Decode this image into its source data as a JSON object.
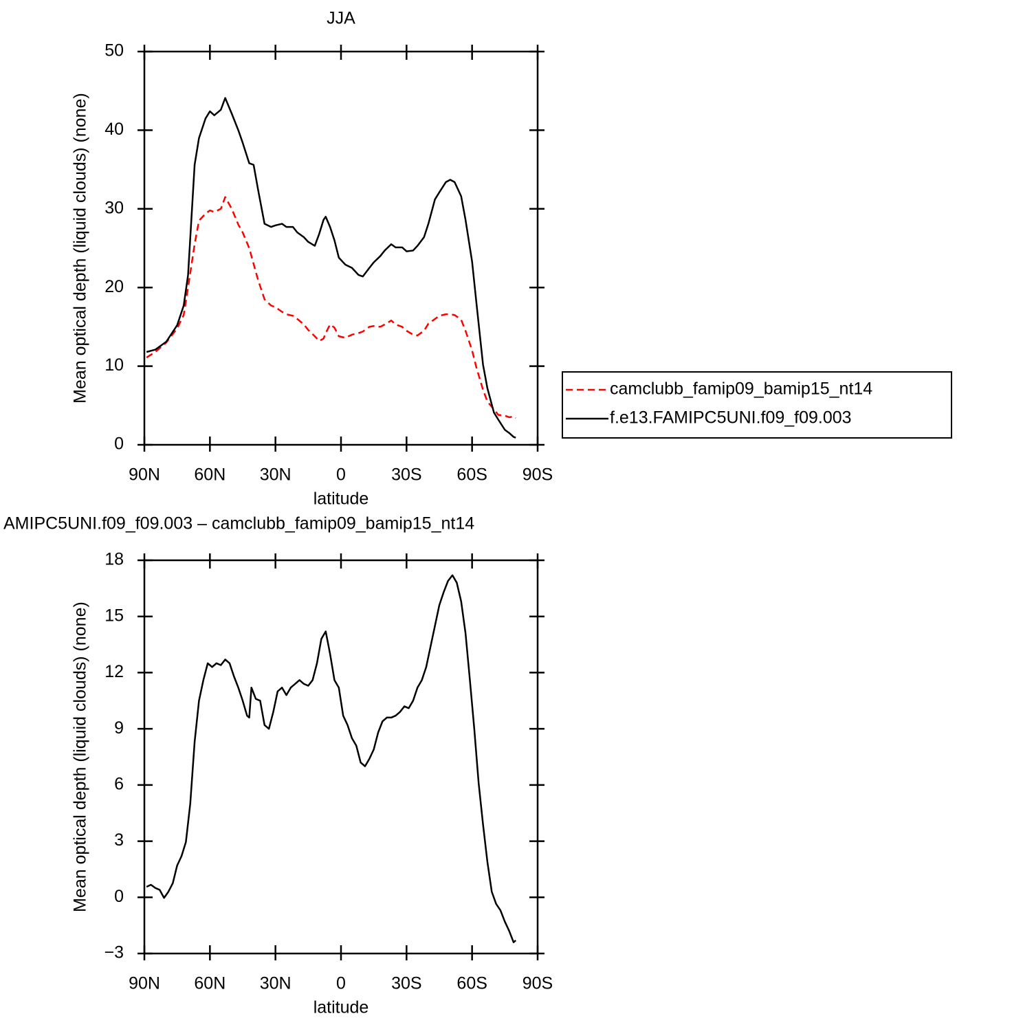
{
  "chart_data": [
    {
      "type": "line",
      "title": "JJA",
      "xlabel": "latitude",
      "ylabel": "Mean optical depth (liquid clouds) (none)",
      "x": [
        89,
        85,
        80,
        75,
        72,
        70,
        67,
        65,
        62,
        60,
        58,
        55,
        53,
        50,
        47,
        45,
        42,
        40,
        38,
        35,
        32,
        30,
        27,
        25,
        22,
        20,
        17,
        15,
        12,
        10,
        8,
        7,
        5,
        3,
        1,
        -2,
        -5,
        -8,
        -10,
        -13,
        -15,
        -18,
        -20,
        -23,
        -25,
        -28,
        -30,
        -33,
        -35,
        -38,
        -40,
        -43,
        -45,
        -48,
        -50,
        -52,
        -55,
        -57,
        -60,
        -62,
        -65,
        -67,
        -70,
        -72,
        -75,
        -77,
        -79,
        -80
      ],
      "series": [
        {
          "name": "camclubb_famip09_bamip15_nt14",
          "color": "#ff0000",
          "dash": true,
          "values": [
            11.1,
            11.8,
            13.0,
            14.8,
            16.5,
            20,
            25.5,
            28.5,
            29.4,
            29.8,
            29.6,
            30.0,
            31.5,
            30.0,
            28.0,
            27.0,
            25.0,
            23.0,
            21.0,
            18.5,
            17.7,
            17.5,
            16.9,
            16.6,
            16.4,
            16.0,
            15.3,
            14.6,
            13.8,
            13.2,
            13.5,
            14.2,
            15.3,
            14.9,
            13.8,
            13.6,
            14.0,
            14.2,
            14.4,
            15.0,
            15.1,
            15.0,
            15.3,
            15.8,
            15.3,
            15.0,
            14.5,
            14.0,
            13.9,
            14.5,
            15.4,
            16.0,
            16.4,
            16.6,
            16.6,
            16.5,
            15.9,
            14.5,
            12.0,
            9.8,
            7.0,
            5.5,
            4.5,
            3.8,
            3.7,
            3.5,
            3.6,
            3.4
          ]
        },
        {
          "name": "f.e13.FAMIPC5UNI.f09_f09.003",
          "color": "#000000",
          "dash": false,
          "values": [
            11.8,
            12.1,
            13.1,
            15.2,
            17.7,
            21.6,
            35.6,
            39,
            41.5,
            42.4,
            41.9,
            42.6,
            44.1,
            42.1,
            40,
            38.4,
            35.8,
            35.6,
            32.5,
            28.1,
            27.7,
            27.9,
            28.1,
            27.7,
            27.7,
            27.0,
            26.4,
            25.8,
            25.3,
            26.8,
            28.6,
            29.0,
            27.7,
            26,
            23.8,
            22.9,
            22.5,
            21.6,
            21.4,
            22.5,
            23.2,
            24.0,
            24.7,
            25.5,
            25.1,
            25.1,
            24.6,
            24.7,
            25.3,
            26.4,
            28.1,
            31.2,
            32.1,
            33.4,
            33.7,
            33.4,
            31.6,
            28.6,
            23.3,
            18.0,
            10.2,
            7.2,
            4.1,
            3.2,
            1.9,
            1.5,
            1.0,
            0.9
          ]
        }
      ],
      "xlim": [
        90,
        -90
      ],
      "xticks": [
        {
          "value": 90,
          "label": "90N"
        },
        {
          "value": 60,
          "label": "60N"
        },
        {
          "value": 30,
          "label": "30N"
        },
        0,
        {
          "value": -30,
          "label": "30S"
        },
        {
          "value": -60,
          "label": "60S"
        },
        {
          "value": -90,
          "label": "90S"
        }
      ],
      "ylim": [
        0,
        50
      ],
      "yticks": [
        0,
        10,
        20,
        30,
        40,
        50
      ],
      "legend": "right"
    },
    {
      "type": "line",
      "title": "AMIPC5UNI.f09_f09.003 – camclubb_famip09_bamip15_nt14",
      "xlabel": "latitude",
      "ylabel": "Mean optical depth (liquid clouds) (none)",
      "x": [
        89,
        87,
        85,
        83,
        81,
        79,
        77,
        75,
        73,
        71,
        69,
        67,
        65,
        63,
        61,
        59,
        57,
        55,
        53,
        51,
        49,
        47,
        45,
        43,
        42,
        41,
        39,
        37,
        35,
        33,
        31,
        29,
        27,
        25,
        23,
        21,
        19,
        17,
        15,
        13,
        11,
        9,
        7,
        5,
        3,
        1,
        -1,
        -3,
        -5,
        -7,
        -9,
        -11,
        -13,
        -15,
        -17,
        -19,
        -21,
        -23,
        -25,
        -27,
        -29,
        -31,
        -33,
        -35,
        -37,
        -39,
        -41,
        -43,
        -45,
        -47,
        -49,
        -51,
        -53,
        -55,
        -57,
        -59,
        -61,
        -63,
        -65,
        -67,
        -69,
        -71,
        -73,
        -75,
        -77,
        -79,
        -80
      ],
      "values": [
        0.56,
        0.67,
        0.5,
        0.4,
        -0.03,
        0.3,
        0.75,
        1.7,
        2.2,
        2.95,
        5.0,
        8.3,
        10.5,
        11.6,
        12.5,
        12.3,
        12.5,
        12.4,
        12.7,
        12.5,
        11.8,
        11.2,
        10.5,
        9.7,
        9.6,
        11.2,
        10.6,
        10.5,
        9.2,
        9.0,
        9.9,
        11.0,
        11.2,
        10.8,
        11.2,
        11.4,
        11.6,
        11.4,
        11.3,
        11.6,
        12.5,
        13.8,
        14.2,
        13.0,
        11.6,
        11.2,
        9.7,
        9.2,
        8.5,
        8.1,
        7.2,
        7.0,
        7.4,
        7.9,
        8.8,
        9.4,
        9.6,
        9.6,
        9.7,
        9.9,
        10.2,
        10.1,
        10.5,
        11.2,
        11.6,
        12.3,
        13.4,
        14.5,
        15.6,
        16.3,
        16.9,
        17.2,
        16.8,
        15.8,
        14.1,
        11.6,
        9.0,
        6.1,
        3.9,
        1.9,
        0.3,
        -0.35,
        -0.7,
        -1.3,
        -1.8,
        -2.4,
        -2.3
      ],
      "color": "#000000",
      "xlim": [
        90,
        -90
      ],
      "xticks": [
        {
          "value": 90,
          "label": "90N"
        },
        {
          "value": 60,
          "label": "60N"
        },
        {
          "value": 30,
          "label": "30N"
        },
        0,
        {
          "value": -30,
          "label": "30S"
        },
        {
          "value": -60,
          "label": "60S"
        },
        {
          "value": -90,
          "label": "90S"
        }
      ],
      "ylim": [
        -3,
        18
      ],
      "yticks": [
        {
          "value": -3,
          "label": "−3"
        },
        0,
        3,
        6,
        9,
        12,
        15,
        18
      ]
    }
  ]
}
